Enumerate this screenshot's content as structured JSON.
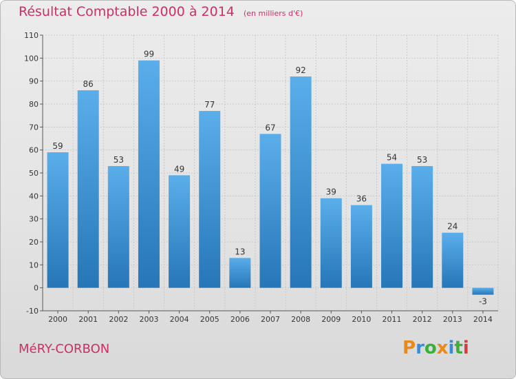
{
  "header": {
    "title": "Résultat Comptable 2000 à 2014",
    "subtitle": "(en milliers d'€)"
  },
  "footer": {
    "commune": "MéRY-CORBON",
    "logo_text": "Proxiti",
    "logo_colors": [
      "#e8891a",
      "#3a8ad6",
      "#3cae3c",
      "#e8891a",
      "#3a8ad6",
      "#3cae3c",
      "#d93b3b"
    ]
  },
  "colors": {
    "title": "#cc2f66",
    "bar_top": "#5aaeea",
    "bar_bottom": "#2676b8",
    "grid": "#c9c9c9",
    "axis_text": "#333333"
  },
  "chart_data": {
    "type": "bar",
    "categories": [
      "2000",
      "2001",
      "2002",
      "2003",
      "2004",
      "2005",
      "2006",
      "2007",
      "2008",
      "2009",
      "2010",
      "2011",
      "2012",
      "2013",
      "2014"
    ],
    "values": [
      59,
      86,
      53,
      99,
      49,
      77,
      13,
      67,
      92,
      39,
      36,
      54,
      53,
      24,
      -3
    ],
    "title": "Résultat Comptable 2000 à 2014",
    "subtitle": "(en milliers d'€)",
    "xlabel": "",
    "ylabel": "",
    "ylim": [
      -10,
      110
    ],
    "yticks": [
      -10,
      0,
      10,
      20,
      30,
      40,
      50,
      60,
      70,
      80,
      90,
      100,
      110
    ],
    "grid": true,
    "legend": "none"
  }
}
